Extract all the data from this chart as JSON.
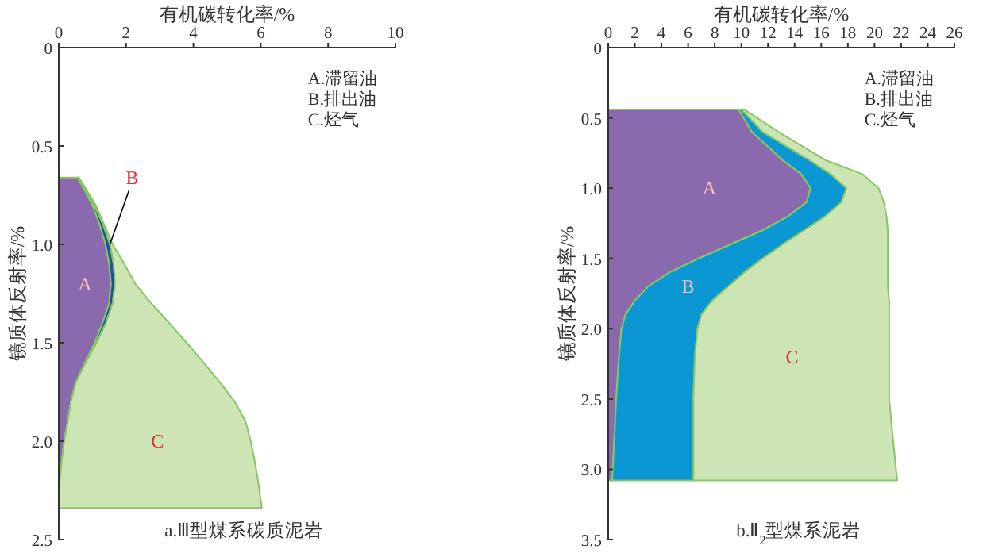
{
  "chart_data": [
    {
      "type": "area",
      "orientation": "horizontal",
      "stacked": true,
      "title": "a.Ⅲ型煤系碳质泥岩",
      "xlabel": "有机碳转化率/%",
      "ylabel": "镜质体反射率/%",
      "annotations": [
        "A.滞留油",
        "B.排出油",
        "C.烃气"
      ],
      "x": [
        0.66,
        0.8,
        0.9,
        1.0,
        1.1,
        1.2,
        1.3,
        1.4,
        1.5,
        1.6,
        1.7,
        1.8,
        1.9,
        2.0,
        2.1,
        2.2,
        2.34
      ],
      "series": [
        {
          "name": "A",
          "color": "#8a6aad",
          "values": [
            0.56,
            1.0,
            1.22,
            1.39,
            1.5,
            1.55,
            1.5,
            1.3,
            1.07,
            0.78,
            0.51,
            0.36,
            0.27,
            0.16,
            0.09,
            0.03,
            0
          ]
        },
        {
          "name": "B",
          "color": "#1c4fa0",
          "values": [
            0,
            0.05,
            0.1,
            0.13,
            0.13,
            0.12,
            0.1,
            0.1,
            0.05,
            0.02,
            0,
            0,
            0,
            0,
            0,
            0,
            0
          ]
        },
        {
          "name": "C",
          "color": "#cde5b5",
          "values": [
            0.04,
            0.05,
            0.03,
            0.08,
            0.32,
            0.6,
            1.15,
            1.88,
            2.68,
            3.5,
            4.27,
            4.87,
            5.28,
            5.54,
            5.73,
            5.89,
            6.03
          ]
        }
      ],
      "xlim": [
        0,
        10
      ],
      "xticks": [
        0,
        2,
        4,
        6,
        8,
        10
      ],
      "ylim": [
        2.5,
        0
      ],
      "yticks": [
        0,
        0.5,
        {
          "value": 1,
          "label": "1.0"
        },
        1.5,
        {
          "value": 2,
          "label": "2.0"
        },
        2.5
      ],
      "grid": false,
      "legend": false
    },
    {
      "type": "area",
      "orientation": "horizontal",
      "stacked": true,
      "title": "b.Ⅱ$_{2}$型煤系泥岩",
      "xlabel": "有机碳转化率/%",
      "ylabel": "镜质体反射率/%",
      "annotations": [
        "A.滞留油",
        "B.排出油",
        "C.烃气"
      ],
      "x": [
        0.44,
        0.6,
        0.8,
        0.9,
        1.0,
        1.1,
        1.2,
        1.3,
        1.4,
        1.5,
        1.6,
        1.7,
        1.8,
        1.9,
        2.0,
        2.2,
        2.5,
        2.7,
        3.08
      ],
      "series": [
        {
          "name": "A",
          "color": "#8a6aad",
          "values": [
            9.8,
            10.8,
            13.1,
            14.5,
            15.2,
            14.9,
            13.5,
            11.6,
            9.2,
            6.8,
            4.6,
            3.0,
            2.0,
            1.3,
            1.0,
            0.8,
            0.6,
            0.5,
            0.3
          ]
        },
        {
          "name": "B",
          "color": "#0b97d3",
          "values": [
            0.2,
            0.8,
            2.0,
            2.2,
            2.7,
            2.6,
            2.8,
            3.1,
            3.9,
            4.8,
            5.6,
            6.0,
            5.8,
            5.7,
            5.7,
            5.7,
            5.8,
            5.9,
            6.1
          ]
        },
        {
          "name": "C",
          "color": "#cde5b5",
          "values": [
            0.2,
            1.2,
            1.2,
            2.4,
            2.4,
            3.2,
            4.6,
            6.3,
            7.9,
            9.4,
            10.8,
            12.0,
            13.3,
            14.1,
            14.4,
            14.6,
            14.7,
            14.9,
            15.3
          ]
        }
      ],
      "xlim": [
        0,
        26
      ],
      "xticks": [
        0,
        2,
        4,
        6,
        8,
        10,
        12,
        14,
        16,
        18,
        20,
        22,
        24,
        26
      ],
      "ylim": [
        3.5,
        0
      ],
      "yticks": [
        0,
        0.5,
        {
          "value": 1,
          "label": "1.0"
        },
        1.5,
        {
          "value": 2,
          "label": "2.0"
        },
        2.5,
        {
          "value": 3,
          "label": "3.0"
        },
        3.5
      ],
      "grid": false,
      "legend": false
    }
  ]
}
